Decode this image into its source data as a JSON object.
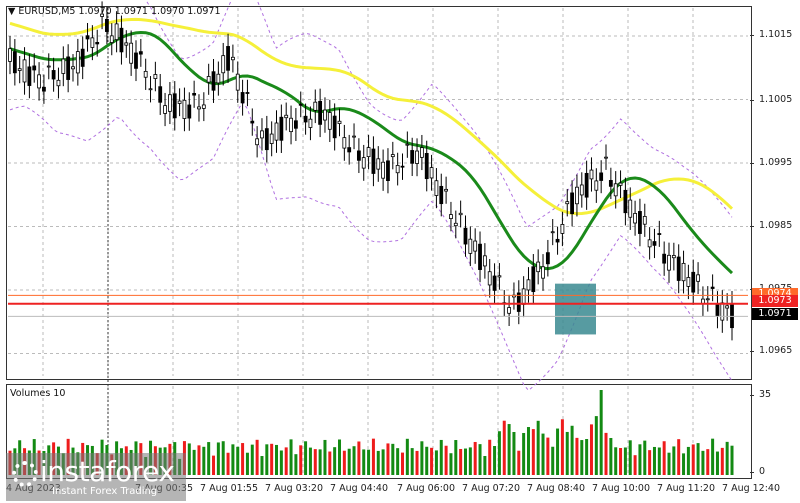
{
  "header": {
    "symbol_line": "EURUSD,M5  1.0970 1.0971 1.0970 1.0971",
    "symbol": "EURUSD",
    "timeframe": "M5",
    "ohlc": [
      "1.0970",
      "1.0971",
      "1.0970",
      "1.0971"
    ]
  },
  "price_axis": {
    "ticks": [
      "1.1015",
      "1.1005",
      "1.0995",
      "1.0985",
      "1.0975",
      "1.0965"
    ],
    "labels": {
      "orange": "1.0974",
      "red": "1.0973",
      "current": "1.0971"
    }
  },
  "volume_panel": {
    "title": "Volumes 10",
    "axis_max": "35",
    "axis_min": "0"
  },
  "time_axis": [
    "4 Aug 2023",
    "7 Aug 00:35",
    "7 Aug 01:55",
    "7 Aug 03:20",
    "7 Aug 04:40",
    "7 Aug 06:00",
    "7 Aug 07:20",
    "7 Aug 08:40",
    "7 Aug 10:00",
    "7 Aug 11:20",
    "7 Aug 12:40"
  ],
  "watermark": {
    "brand": "instaforex",
    "tagline": "Instant Forex Trading"
  },
  "colors": {
    "ma_fast": "#1a8a1a",
    "ma_slow": "#f5f03a",
    "envelope": "#b070e0",
    "level_red": "#ee2222",
    "level_orange": "#ff6a2a",
    "highlight_box": "#3a8a90",
    "vol_up": "#138a13",
    "vol_down": "#ee1c1c"
  },
  "chart_data": {
    "type": "candlestick",
    "title": "EURUSD,M5",
    "x_labels": [
      "4 Aug",
      "7 Aug 00:35",
      "7 Aug 01:55",
      "7 Aug 03:20",
      "7 Aug 04:40",
      "7 Aug 06:00",
      "7 Aug 07:20",
      "7 Aug 08:40",
      "7 Aug 10:00",
      "7 Aug 11:20",
      "7 Aug 12:40"
    ],
    "ylim": [
      1.096,
      1.1022
    ],
    "approx_close_path": [
      1.1011,
      1.1008,
      1.101,
      1.1017,
      1.1012,
      1.1004,
      1.1004,
      1.1012,
      1.0998,
      1.1002,
      1.1003,
      1.0997,
      1.0994,
      1.0997,
      1.0988,
      1.098,
      1.0972,
      1.0979,
      1.099,
      1.0994,
      1.0986,
      1.098,
      1.0975,
      1.0971
    ],
    "horizontal_levels": [
      {
        "label": "1.0974",
        "color": "orange"
      },
      {
        "label": "1.0973",
        "color": "red"
      },
      {
        "label": "1.0971",
        "color": "gray",
        "note": "current price"
      }
    ],
    "indicators": [
      "MA fast (green)",
      "MA slow (yellow)",
      "Envelopes (violet dashed)"
    ],
    "highlight_zone": {
      "from": "7 Aug 08:40",
      "to": "7 Aug 09:10",
      "price_range": [
        1.0968,
        1.0976
      ]
    },
    "volumes": {
      "title": "Volumes 10",
      "ylim": [
        0,
        35
      ],
      "peak": 35,
      "peak_time": "~7 Aug 09:30"
    }
  }
}
